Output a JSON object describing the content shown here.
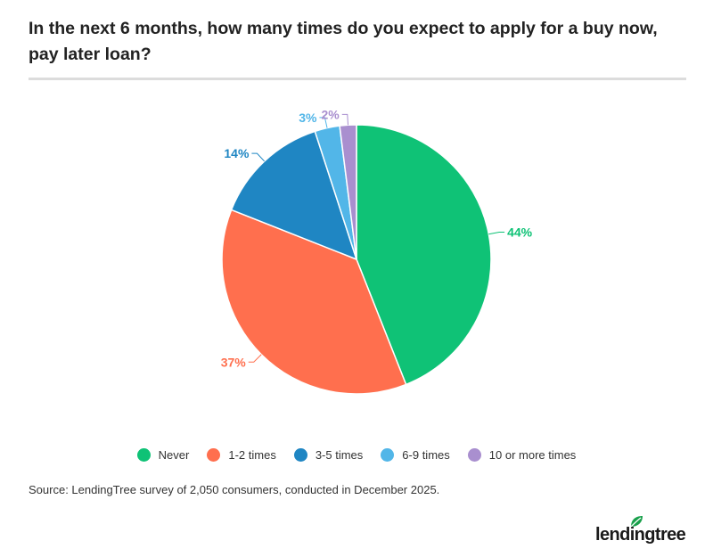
{
  "chart_data": {
    "type": "pie",
    "title": "In the next 6 months, how many times do you expect to apply for a buy now, pay later loan?",
    "categories": [
      "Never",
      "1-2 times",
      "3-5 times",
      "6-9 times",
      "10 or more times"
    ],
    "values": [
      44,
      37,
      14,
      3,
      2
    ],
    "data_labels": [
      "44%",
      "37%",
      "14%",
      "3%",
      "2%"
    ],
    "colors": [
      "#0fc276",
      "#ff6f4e",
      "#1f86c3",
      "#52b6e8",
      "#a98fcf"
    ],
    "legend_placement": "bottom-center"
  },
  "source": "Source: LendingTree survey of 2,050 consumers, conducted in December 2025.",
  "logo": {
    "text": "lendingtree",
    "icon": "leaf-icon"
  }
}
